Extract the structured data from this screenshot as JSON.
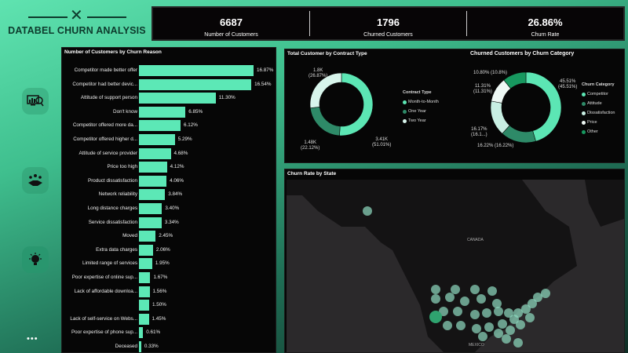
{
  "header": {
    "title": "DATABEL CHURN ANALYSIS"
  },
  "kpis": [
    {
      "value": "6687",
      "label": "Number of Customers"
    },
    {
      "value": "1796",
      "label": "Churned Customers"
    },
    {
      "value": "26.86%",
      "label": "Churn Rate"
    }
  ],
  "sidebar": {
    "icons": [
      "dashboard-analytics-icon",
      "customer-handshake-icon",
      "insight-lightbulb-icon"
    ],
    "more": "•••"
  },
  "colors": {
    "accent": "#5ce8b6",
    "dark_green": "#2e8a68",
    "panel": "#060606"
  },
  "chart_data": [
    {
      "type": "bar",
      "title": "Number of Customers by Churn Reason",
      "orientation": "horizontal",
      "categories": [
        "Competitor made better offer",
        "Competitor had better devic...",
        "Attitude of support person",
        "Don't know",
        "Competitor offered more da...",
        "Competitor offered higher d...",
        "Attitude of service provider",
        "Price too high",
        "Product dissatisfaction",
        "Network reliability",
        "Long distance charges",
        "Service dissatisfaction",
        "Moved",
        "Extra data charges",
        "Limited range of services",
        "Poor expertise of online sup...",
        "Lack of affordable downloa...",
        "",
        "Lack of self-service on Webs...",
        "Poor expertise of phone sup...",
        "Deceased"
      ],
      "values": [
        16.87,
        16.54,
        11.3,
        6.85,
        6.12,
        5.29,
        4.68,
        4.12,
        4.06,
        3.84,
        3.4,
        3.34,
        2.45,
        2.06,
        1.95,
        1.67,
        1.56,
        1.5,
        1.45,
        0.61,
        0.33
      ],
      "labels": [
        "16.87%",
        "16.54%",
        "11.30%",
        "6.85%",
        "6.12%",
        "5.29%",
        "4.68%",
        "4.12%",
        "4.06%",
        "3.84%",
        "3.40%",
        "3.34%",
        "2.45%",
        "2.06%",
        "1.95%",
        "1.67%",
        "1.56%",
        "1.50%",
        "1.45%",
        "0.61%",
        "0.33%"
      ]
    },
    {
      "type": "pie",
      "donut": true,
      "title": "Total Customer by Contract Type",
      "legend_title": "Contract Type",
      "categories": [
        "Month-to-Month",
        "One Year",
        "Two Year"
      ],
      "values": [
        51.01,
        22.12,
        26.87
      ],
      "labels": [
        "3.41K (51.01%)",
        "1.48K (22.12%)",
        "1.8K (26.87%)"
      ],
      "colors": [
        "#5ce6b4",
        "#2e8a68",
        "#d8f5ec"
      ]
    },
    {
      "type": "pie",
      "donut": true,
      "title": "Churned Customers by Churn Category",
      "legend_title": "Churn Category",
      "categories": [
        "Competitor",
        "Attitude",
        "Dissatisfaction",
        "Price",
        "Other"
      ],
      "values": [
        45.51,
        16.22,
        16.17,
        11.31,
        10.8
      ],
      "labels": [
        "45.51% (45.51%)",
        "16.22% (16.22%)",
        "16.17% (16.1...)",
        "11.31% (11.31%)",
        "10.80% (10.8%)"
      ],
      "colors": [
        "#5ce6b4",
        "#2e8a68",
        "#c8efe3",
        "#eef8f4",
        "#17985f"
      ]
    }
  ],
  "map": {
    "title": "Churn Rate by State",
    "labels": [
      "CANADA",
      "MEXICO"
    ]
  }
}
